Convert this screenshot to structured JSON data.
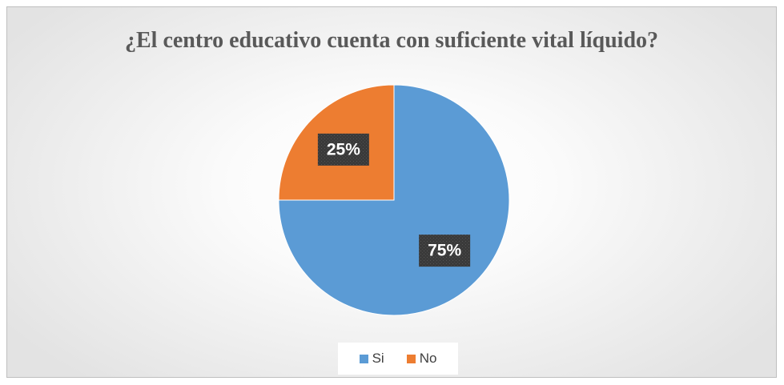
{
  "chart_data": {
    "type": "pie",
    "title": "¿El centro educativo cuenta con suficiente vital líquido?",
    "categories": [
      "Si",
      "No"
    ],
    "values": [
      75,
      25
    ],
    "data_labels": [
      "75%",
      "25%"
    ],
    "colors": [
      "#5b9bd5",
      "#ed7d31"
    ],
    "legend_position": "bottom",
    "label_style": "dark-callout"
  }
}
